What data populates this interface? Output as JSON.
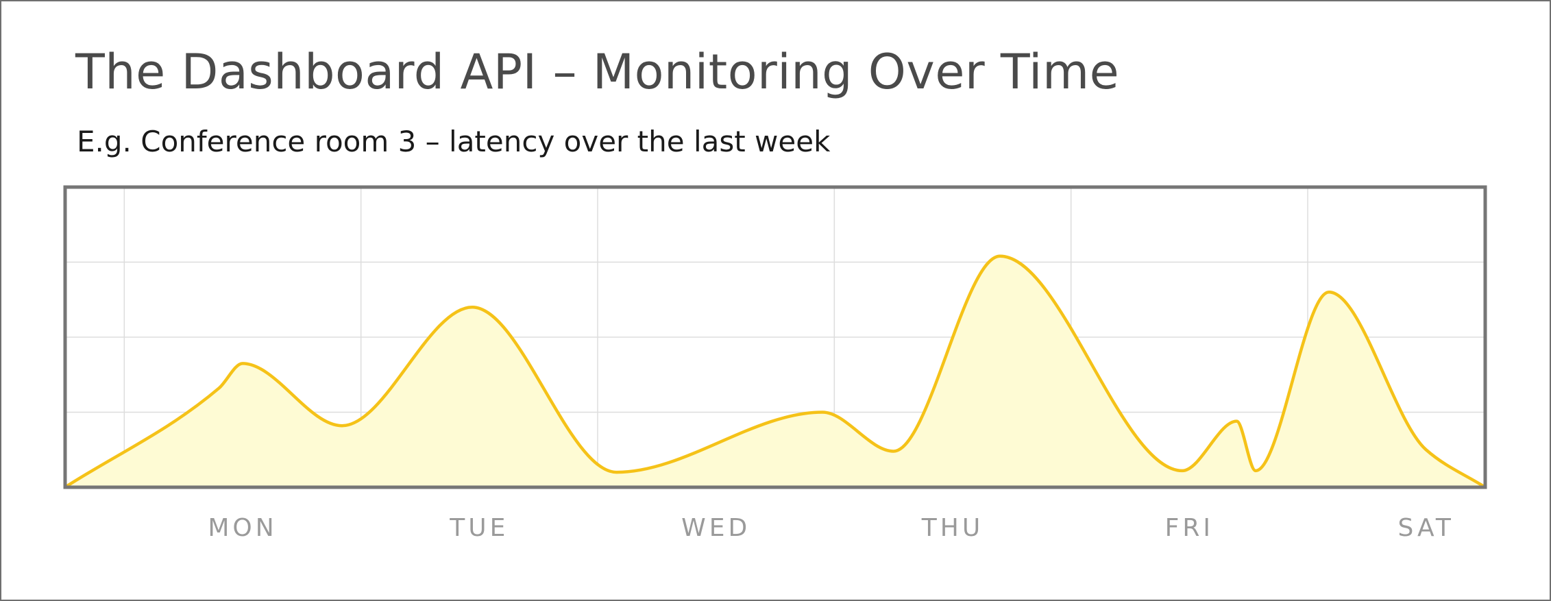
{
  "chart_data": {
    "type": "area",
    "title": "The Dashboard API – Monitoring Over Time",
    "subtitle": "E.g. Conference room 3 – latency over the last week",
    "xlabel": "",
    "ylabel": "",
    "x_tick_labels": [
      "MON",
      "TUE",
      "WED",
      "THU",
      "FRI",
      "SAT"
    ],
    "xlim": [
      -0.75,
      5.25
    ],
    "ylim": [
      0,
      4
    ],
    "grid": true,
    "series": [
      {
        "color": "#f5c218",
        "fill": "#fefbd4",
        "points": [
          {
            "x": -0.75,
            "y": 0.0
          },
          {
            "x": -0.1,
            "y": 1.32
          },
          {
            "x": 0.0,
            "y": 1.65
          },
          {
            "x": 0.42,
            "y": 0.82
          },
          {
            "x": 0.97,
            "y": 2.4
          },
          {
            "x": 1.58,
            "y": 0.2
          },
          {
            "x": 2.45,
            "y": 1.0
          },
          {
            "x": 2.75,
            "y": 0.48
          },
          {
            "x": 3.2,
            "y": 3.08
          },
          {
            "x": 3.97,
            "y": 0.22
          },
          {
            "x": 4.2,
            "y": 0.88
          },
          {
            "x": 4.28,
            "y": 0.22
          },
          {
            "x": 4.59,
            "y": 2.6
          },
          {
            "x": 5.0,
            "y": 0.5
          },
          {
            "x": 5.25,
            "y": 0.0
          }
        ]
      }
    ]
  },
  "colors": {
    "frame": "#6f6f6f",
    "plot_border": "#767676",
    "grid": "#dddddd",
    "line": "#f5c218",
    "area_fill": "#fefbd4",
    "title": "#4a4a4a",
    "subtitle": "#1a1a1a",
    "tick_labels": "#9a9a9a"
  }
}
